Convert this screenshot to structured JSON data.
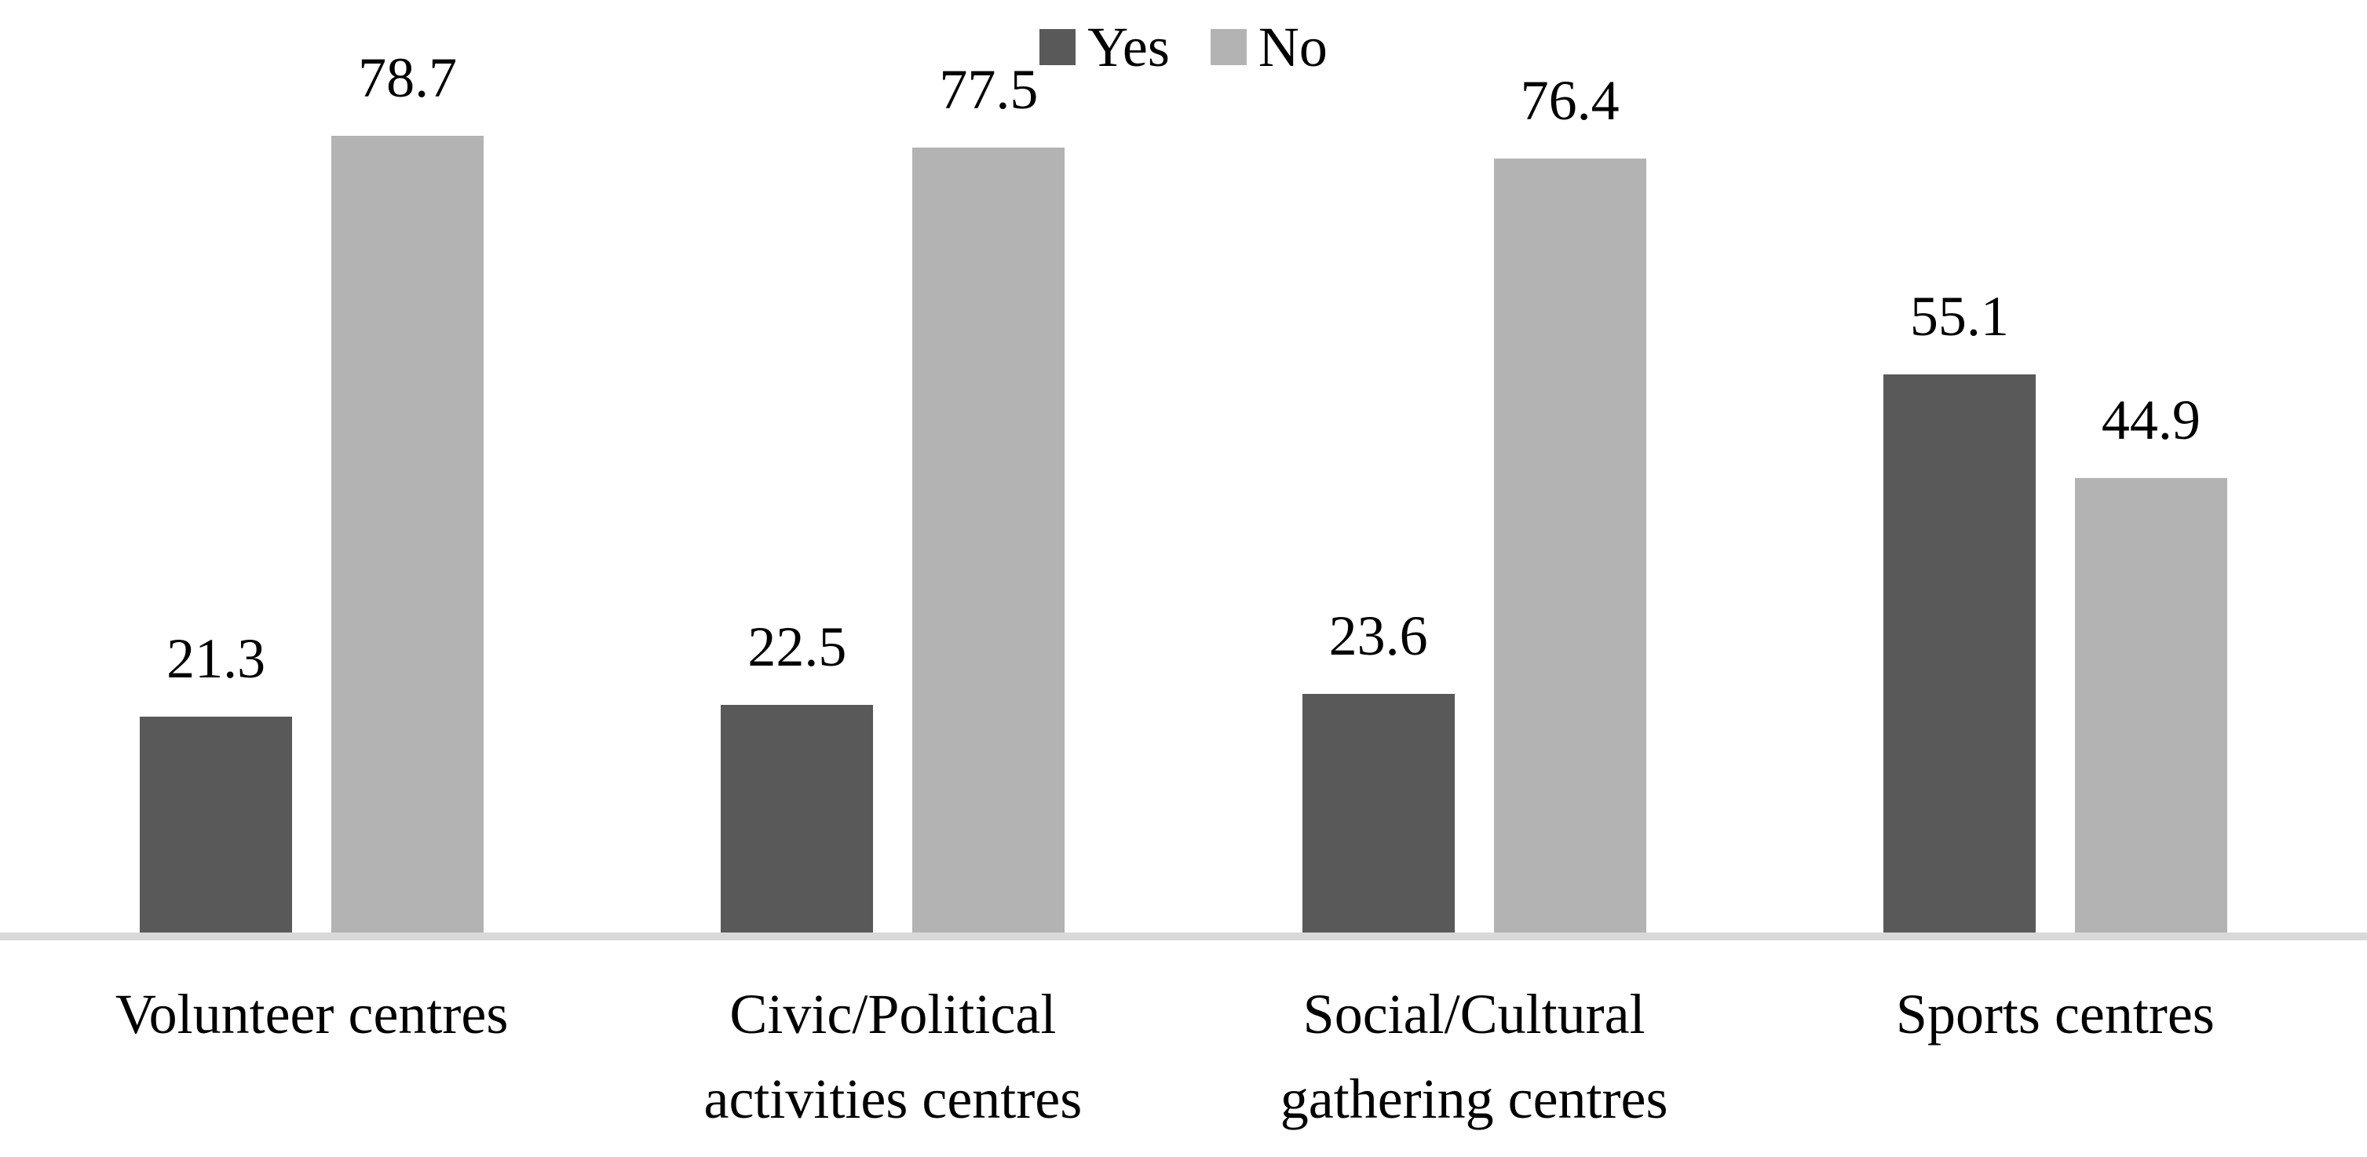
{
  "chart_data": {
    "type": "bar",
    "title": "",
    "xlabel": "",
    "ylabel": "",
    "categories": [
      "Volunteer centres",
      "Civic/Political activities centres",
      "Social/Cultural gathering centres",
      "Sports centres"
    ],
    "series": [
      {
        "name": "Yes",
        "color": "#595959",
        "values": [
          21.3,
          22.5,
          23.6,
          55.1
        ]
      },
      {
        "name": "No",
        "color": "#b3b3b3",
        "values": [
          78.7,
          77.5,
          76.4,
          44.9
        ]
      }
    ],
    "ylim": [
      0,
      100
    ],
    "grid": "off",
    "y_axis_visible": false,
    "value_labels": "above bars",
    "legend_position": "top-center",
    "axis_line_color": "#d9d9d9",
    "text_color": "#000000",
    "background": "#ffffff"
  }
}
